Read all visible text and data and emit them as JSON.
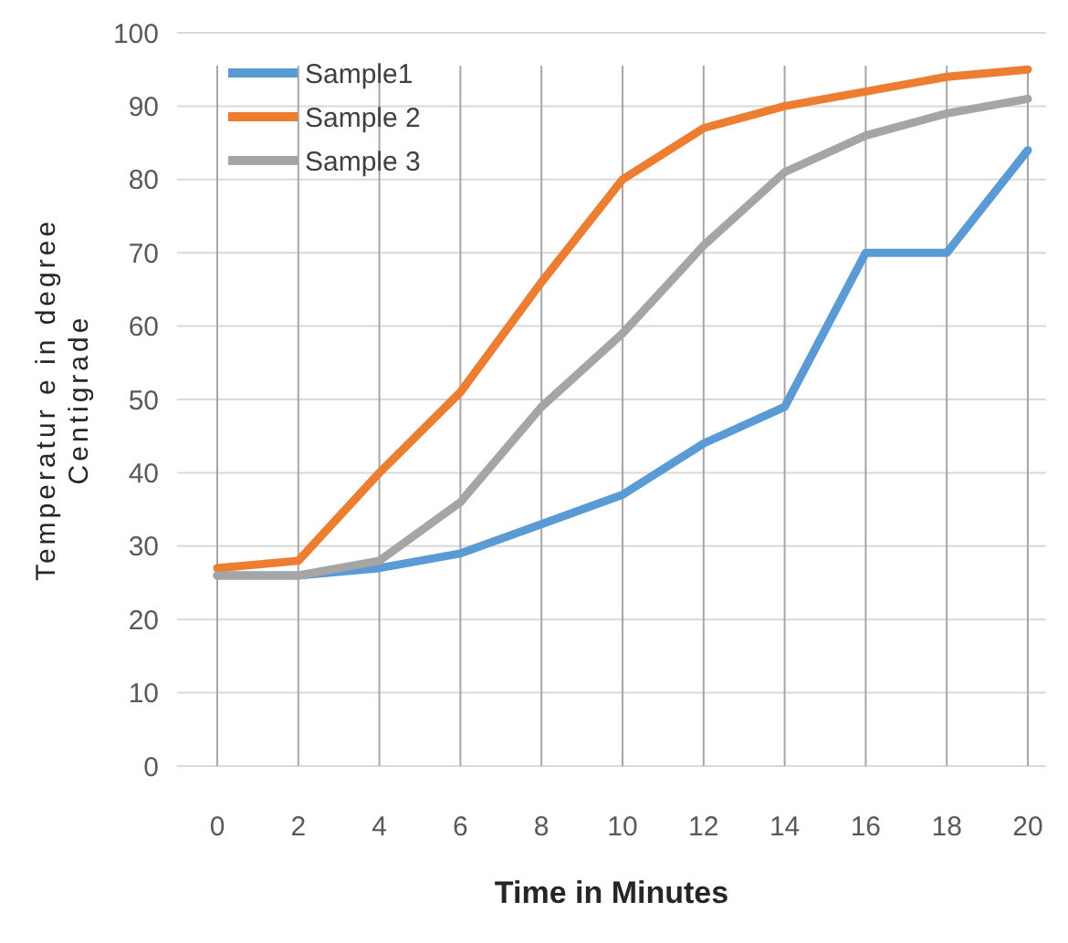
{
  "chart_data": {
    "type": "line",
    "xlabel": "Time in Minutes",
    "ylabel": "Temperatur e in degree\nCentigrade",
    "categories": [
      "0",
      "2",
      "4",
      "6",
      "8",
      "10",
      "12",
      "14",
      "16",
      "18",
      "20"
    ],
    "series": [
      {
        "name": "Sample1",
        "color": "#5b9bd5",
        "values": [
          26,
          26,
          27,
          29,
          33,
          37,
          44,
          49,
          70,
          70,
          84
        ]
      },
      {
        "name": "Sample 2",
        "color": "#ed7d31",
        "values": [
          27,
          28,
          40,
          51,
          66,
          80,
          87,
          90,
          92,
          94,
          95
        ]
      },
      {
        "name": "Sample 3",
        "color": "#a5a5a5",
        "values": [
          26,
          26,
          28,
          36,
          49,
          59,
          71,
          81,
          86,
          89,
          91
        ]
      }
    ],
    "ylim": [
      0,
      100
    ],
    "yticks": [
      0,
      10,
      20,
      30,
      40,
      50,
      60,
      70,
      80,
      90,
      100
    ],
    "grid": true,
    "legend": "top left",
    "marker": "none",
    "line_style": "solid"
  }
}
